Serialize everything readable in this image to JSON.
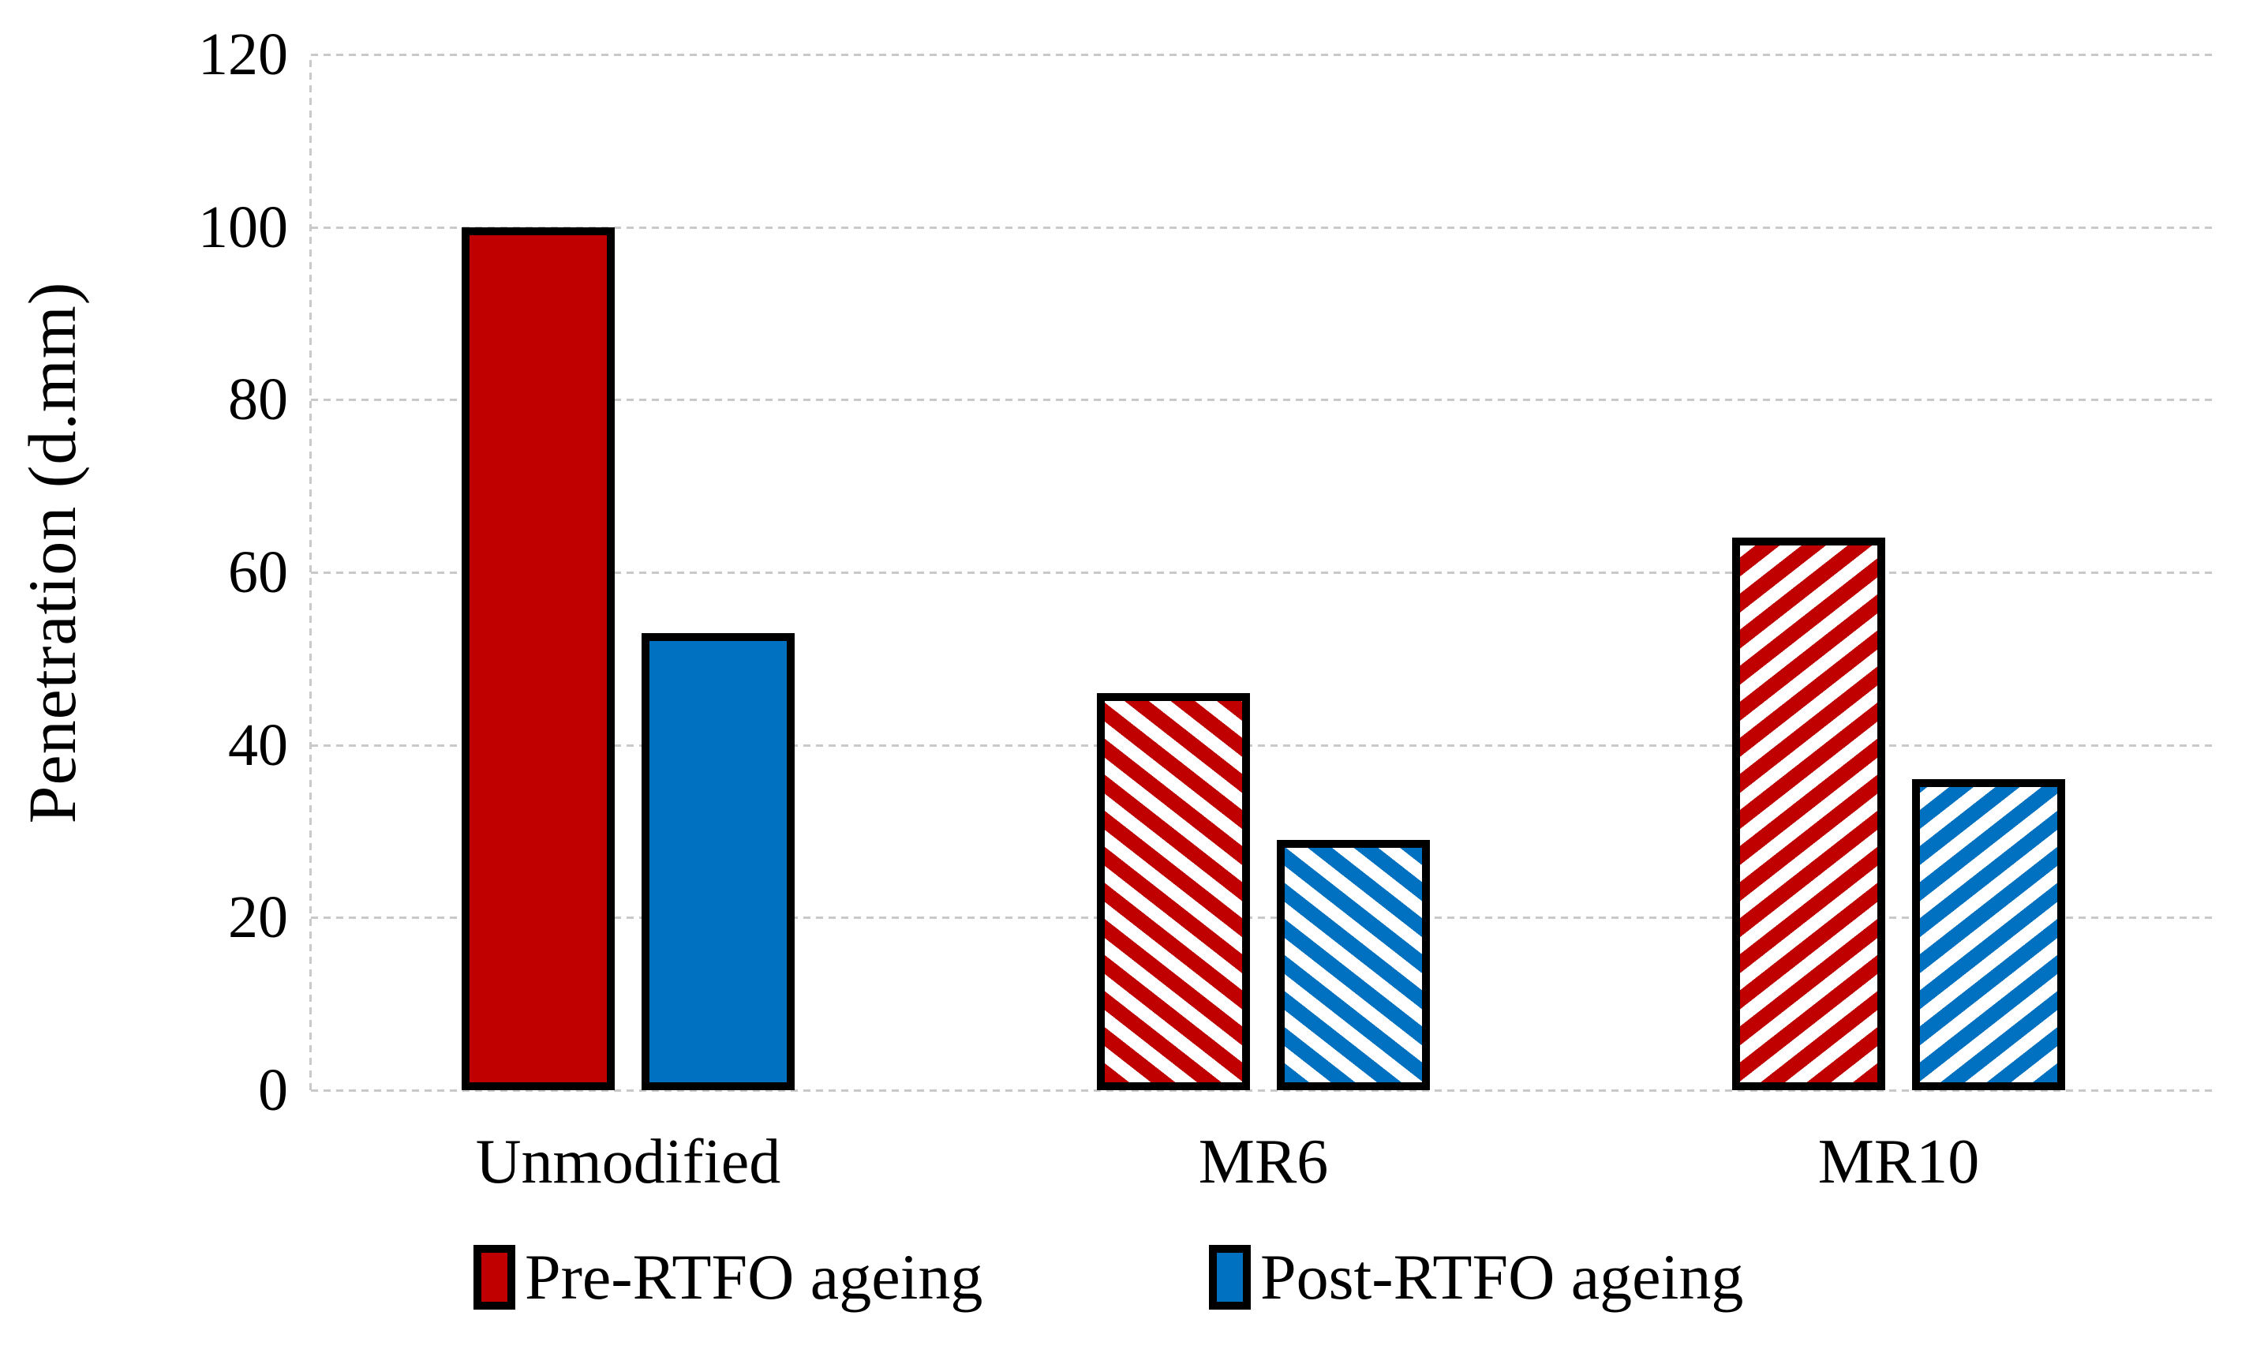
{
  "chart_data": {
    "type": "bar",
    "title": "",
    "xlabel": "",
    "ylabel": "Penetration (d.mm)",
    "categories": [
      "Unmodified",
      "MR6",
      "MR10"
    ],
    "series": [
      {
        "name": "Pre-RTFO ageing",
        "color": "#c00000",
        "values": [
          100,
          46,
          64
        ]
      },
      {
        "name": "Post-RTFO ageing",
        "color": "#0070c0",
        "values": [
          53,
          29,
          36
        ]
      }
    ],
    "category_fill_styles": [
      "solid",
      "hatch-down-right",
      "hatch-up-right"
    ],
    "ylim": [
      0,
      120
    ],
    "yticks": [
      0,
      20,
      40,
      60,
      80,
      100,
      120
    ],
    "grid": "horizontal",
    "legend_position": "bottom",
    "colors": {
      "pre_rtfo": "#c00000",
      "post_rtfo": "#0070c0",
      "gridline": "#c9c9c9",
      "bar_border": "#000000",
      "background": "#ffffff",
      "text": "#000000"
    }
  }
}
